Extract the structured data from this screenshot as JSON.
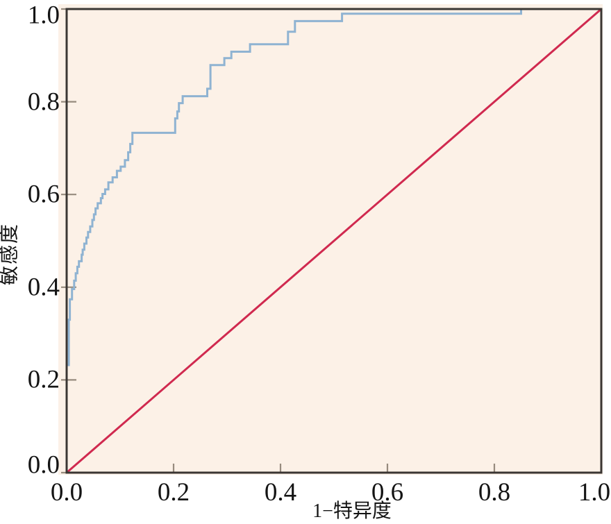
{
  "chart_data": {
    "type": "line",
    "subtype": "roc_step_curve",
    "title": "",
    "xlabel": "1−特异度",
    "ylabel": "敏感度",
    "xlim": [
      0,
      1
    ],
    "ylim": [
      0,
      1
    ],
    "grid": false,
    "legend": "none",
    "x_tick_values": [
      0,
      0.2,
      0.4,
      0.6,
      0.8,
      1
    ],
    "x_tick_labels": [
      "0.0",
      "0.2",
      "0.4",
      "0.6",
      "0.8",
      "1.0"
    ],
    "y_tick_values": [
      0,
      0.2,
      0.4,
      0.6,
      0.8,
      1
    ],
    "y_tick_labels": [
      "0.0",
      "0.2",
      "0.4",
      "0.6",
      "0.8",
      "1.0"
    ],
    "series": [
      {
        "name": "ROC curve",
        "type": "step",
        "color": "#8fb3d2",
        "width": 3,
        "points": [
          [
            0.0,
            0.232
          ],
          [
            0.004,
            0.232
          ],
          [
            0.004,
            0.33
          ],
          [
            0.006,
            0.33
          ],
          [
            0.006,
            0.374
          ],
          [
            0.01,
            0.374
          ],
          [
            0.01,
            0.396
          ],
          [
            0.014,
            0.396
          ],
          [
            0.014,
            0.414
          ],
          [
            0.017,
            0.414
          ],
          [
            0.017,
            0.43
          ],
          [
            0.02,
            0.43
          ],
          [
            0.02,
            0.444
          ],
          [
            0.023,
            0.444
          ],
          [
            0.023,
            0.456
          ],
          [
            0.028,
            0.456
          ],
          [
            0.028,
            0.47
          ],
          [
            0.03,
            0.47
          ],
          [
            0.03,
            0.481
          ],
          [
            0.033,
            0.481
          ],
          [
            0.033,
            0.494
          ],
          [
            0.037,
            0.494
          ],
          [
            0.037,
            0.507
          ],
          [
            0.04,
            0.507
          ],
          [
            0.04,
            0.519
          ],
          [
            0.044,
            0.519
          ],
          [
            0.044,
            0.531
          ],
          [
            0.048,
            0.531
          ],
          [
            0.048,
            0.545
          ],
          [
            0.051,
            0.545
          ],
          [
            0.051,
            0.557
          ],
          [
            0.054,
            0.557
          ],
          [
            0.054,
            0.57
          ],
          [
            0.058,
            0.57
          ],
          [
            0.058,
            0.581
          ],
          [
            0.064,
            0.581
          ],
          [
            0.064,
            0.592
          ],
          [
            0.067,
            0.592
          ],
          [
            0.067,
            0.601
          ],
          [
            0.072,
            0.601
          ],
          [
            0.072,
            0.611
          ],
          [
            0.078,
            0.611
          ],
          [
            0.078,
            0.626
          ],
          [
            0.086,
            0.626
          ],
          [
            0.086,
            0.637
          ],
          [
            0.094,
            0.637
          ],
          [
            0.094,
            0.651
          ],
          [
            0.101,
            0.651
          ],
          [
            0.101,
            0.66
          ],
          [
            0.109,
            0.66
          ],
          [
            0.109,
            0.674
          ],
          [
            0.115,
            0.674
          ],
          [
            0.115,
            0.691
          ],
          [
            0.119,
            0.691
          ],
          [
            0.119,
            0.709
          ],
          [
            0.123,
            0.709
          ],
          [
            0.123,
            0.733
          ],
          [
            0.203,
            0.733
          ],
          [
            0.203,
            0.764
          ],
          [
            0.207,
            0.764
          ],
          [
            0.207,
            0.779
          ],
          [
            0.21,
            0.779
          ],
          [
            0.21,
            0.797
          ],
          [
            0.217,
            0.797
          ],
          [
            0.217,
            0.812
          ],
          [
            0.263,
            0.812
          ],
          [
            0.263,
            0.828
          ],
          [
            0.269,
            0.828
          ],
          [
            0.269,
            0.879
          ],
          [
            0.295,
            0.879
          ],
          [
            0.295,
            0.894
          ],
          [
            0.308,
            0.894
          ],
          [
            0.308,
            0.908
          ],
          [
            0.343,
            0.908
          ],
          [
            0.343,
            0.924
          ],
          [
            0.414,
            0.924
          ],
          [
            0.414,
            0.951
          ],
          [
            0.427,
            0.951
          ],
          [
            0.427,
            0.974
          ],
          [
            0.515,
            0.974
          ],
          [
            0.515,
            0.99
          ],
          [
            0.85,
            0.99
          ],
          [
            0.85,
            1.0
          ],
          [
            1.0,
            1.0
          ]
        ]
      },
      {
        "name": "Chance reference line",
        "type": "line",
        "color": "#d0294f",
        "width": 3,
        "points": [
          [
            0,
            0
          ],
          [
            1,
            1
          ]
        ]
      }
    ],
    "colors": {
      "panel_background": "#fcf1e7",
      "outer_background": "#ffffff",
      "frame": "#3a3633",
      "tick": "#968b7e",
      "text": "#141414",
      "roc_curve": "#8fb3d2",
      "reference_line": "#d0294f"
    }
  }
}
